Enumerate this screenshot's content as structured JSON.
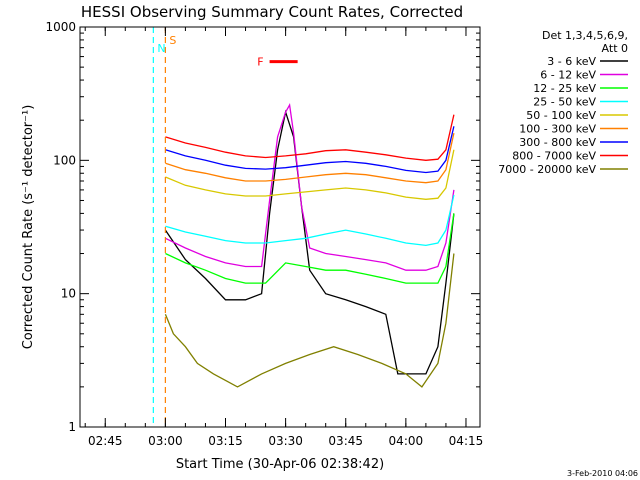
{
  "chart_data": {
    "type": "line",
    "title": "HESSI Observing Summary Count Rates, Corrected",
    "xlabel": "Start Time (30-Apr-06 02:38:42)",
    "ylabel": "Corrected Count Rate (s⁻¹ detector⁻¹)",
    "yscale": "log",
    "xlim": [
      "02:38:42",
      "04:18:30"
    ],
    "ylim": [
      1,
      1000
    ],
    "x_ticks": [
      "02:45",
      "03:00",
      "03:15",
      "03:30",
      "03:45",
      "04:00",
      "04:15"
    ],
    "y_ticks": [
      "1",
      "10",
      "100",
      "1000"
    ],
    "grid": false,
    "legend_position": "right",
    "legend_header": [
      "Det 1,3,4,5,6,9,",
      "Att 0"
    ],
    "series": [
      {
        "name": "3 - 6 keV",
        "color": "#000000",
        "x": [
          "03:00",
          "03:05",
          "03:10",
          "03:15",
          "03:20",
          "03:24",
          "03:26",
          "03:28",
          "03:30",
          "03:32",
          "03:34",
          "03:36",
          "03:40",
          "03:45",
          "03:50",
          "03:55",
          "03:58",
          "04:05",
          "04:08",
          "04:10",
          "04:12"
        ],
        "y": [
          30,
          18,
          13,
          9,
          9,
          10,
          40,
          120,
          230,
          150,
          45,
          15,
          10,
          9,
          8,
          7,
          2.5,
          2.5,
          4,
          12,
          40
        ]
      },
      {
        "name": "6 - 12 keV",
        "color": "#e000e0",
        "x": [
          "03:00",
          "03:05",
          "03:10",
          "03:15",
          "03:20",
          "03:24",
          "03:26",
          "03:28",
          "03:30",
          "03:31",
          "03:32",
          "03:34",
          "03:36",
          "03:40",
          "03:45",
          "03:50",
          "03:55",
          "04:00",
          "04:05",
          "04:08",
          "04:10",
          "04:12"
        ],
        "y": [
          26,
          22,
          19,
          17,
          16,
          16,
          50,
          150,
          230,
          260,
          160,
          45,
          22,
          20,
          19,
          18,
          17,
          15,
          15,
          16,
          24,
          60
        ]
      },
      {
        "name": "12 - 25 keV",
        "color": "#00ff00",
        "x": [
          "03:00",
          "03:05",
          "03:10",
          "03:15",
          "03:20",
          "03:25",
          "03:30",
          "03:35",
          "03:40",
          "03:45",
          "03:50",
          "03:55",
          "04:00",
          "04:05",
          "04:08",
          "04:10",
          "04:12"
        ],
        "y": [
          20,
          17,
          15,
          13,
          12,
          12,
          17,
          16,
          15,
          15,
          14,
          13,
          12,
          12,
          12,
          16,
          40
        ]
      },
      {
        "name": "25 - 50 keV",
        "color": "#00ffff",
        "x": [
          "03:00",
          "03:05",
          "03:10",
          "03:15",
          "03:20",
          "03:25",
          "03:30",
          "03:35",
          "03:40",
          "03:45",
          "03:50",
          "03:55",
          "04:00",
          "04:05",
          "04:08",
          "04:10",
          "04:12"
        ],
        "y": [
          32,
          29,
          27,
          25,
          24,
          24,
          25,
          26,
          28,
          30,
          28,
          26,
          24,
          23,
          24,
          30,
          55
        ]
      },
      {
        "name": "50 - 100 keV",
        "color": "#d8c800",
        "x": [
          "03:00",
          "03:05",
          "03:10",
          "03:15",
          "03:20",
          "03:25",
          "03:30",
          "03:35",
          "03:40",
          "03:45",
          "03:50",
          "03:55",
          "04:00",
          "04:05",
          "04:08",
          "04:10",
          "04:12"
        ],
        "y": [
          75,
          65,
          60,
          56,
          54,
          54,
          56,
          58,
          60,
          62,
          60,
          57,
          53,
          51,
          52,
          62,
          120
        ]
      },
      {
        "name": "100 - 300 keV",
        "color": "#ff8000",
        "x": [
          "03:00",
          "03:05",
          "03:10",
          "03:15",
          "03:20",
          "03:25",
          "03:30",
          "03:35",
          "03:40",
          "03:45",
          "03:50",
          "03:55",
          "04:00",
          "04:05",
          "04:08",
          "04:10",
          "04:12"
        ],
        "y": [
          95,
          85,
          80,
          74,
          70,
          70,
          72,
          75,
          78,
          80,
          78,
          74,
          70,
          68,
          70,
          85,
          160
        ]
      },
      {
        "name": "300 - 800 keV",
        "color": "#0000ff",
        "x": [
          "03:00",
          "03:05",
          "03:10",
          "03:15",
          "03:20",
          "03:25",
          "03:30",
          "03:35",
          "03:40",
          "03:45",
          "03:50",
          "03:55",
          "04:00",
          "04:05",
          "04:08",
          "04:10",
          "04:12"
        ],
        "y": [
          120,
          108,
          100,
          92,
          87,
          86,
          88,
          92,
          96,
          98,
          95,
          90,
          84,
          81,
          83,
          100,
          180
        ]
      },
      {
        "name": "800 - 7000 keV",
        "color": "#ff0000",
        "x": [
          "03:00",
          "03:05",
          "03:10",
          "03:15",
          "03:20",
          "03:25",
          "03:30",
          "03:35",
          "03:40",
          "03:45",
          "03:50",
          "03:55",
          "04:00",
          "04:05",
          "04:08",
          "04:10",
          "04:12"
        ],
        "y": [
          150,
          135,
          125,
          115,
          108,
          105,
          108,
          112,
          118,
          120,
          115,
          110,
          104,
          100,
          102,
          120,
          220
        ]
      },
      {
        "name": "7000 - 20000 keV",
        "color": "#808000",
        "x": [
          "03:00",
          "03:02",
          "03:05",
          "03:08",
          "03:12",
          "03:18",
          "03:24",
          "03:30",
          "03:36",
          "03:42",
          "03:48",
          "03:54",
          "04:00",
          "04:04",
          "04:08",
          "04:10",
          "04:12"
        ],
        "y": [
          7,
          5,
          4,
          3,
          2.5,
          2,
          2.5,
          3,
          3.5,
          4,
          3.5,
          3,
          2.5,
          2,
          3,
          6,
          20
        ]
      }
    ],
    "markers": [
      {
        "label": "S",
        "x": "03:00",
        "color": "#ff8000"
      },
      {
        "label": "N",
        "x": "02:57",
        "color": "#00ffff"
      },
      {
        "label": "F",
        "x_start": "03:26",
        "x_end": "03:33",
        "y": 550,
        "color": "#ff0000"
      }
    ],
    "date_stamp": "3-Feb-2010 04:06"
  }
}
